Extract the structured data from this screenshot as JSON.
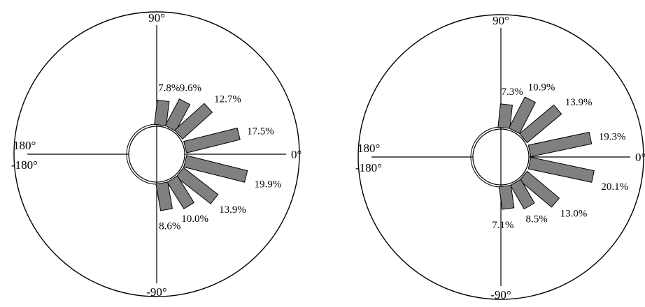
{
  "chart_data": [
    {
      "type": "polar-bar",
      "angle_labels": {
        "right": "0°",
        "top": "90°",
        "left_upper": "180°",
        "left_lower": "-180°",
        "bottom": "-90°"
      },
      "unit": "%",
      "angles_deg": [
        75,
        57,
        38,
        18,
        -10,
        -30,
        -48,
        -66,
        -84
      ],
      "values": [
        7.8,
        9.6,
        12.7,
        17.5,
        19.9,
        13.9,
        10.0,
        8.6
      ],
      "labels": [
        "7.8%",
        "9.6%",
        "12.7%",
        "17.5%",
        "19.9%",
        "13.9%",
        "10.0%",
        "8.6%"
      ]
    },
    {
      "type": "polar-bar",
      "angle_labels": {
        "right": "0°",
        "top": "90°",
        "left_upper": "180°",
        "left_lower": "-180°",
        "bottom": "-90°"
      },
      "unit": "%",
      "values": [
        7.3,
        10.9,
        13.9,
        19.3,
        20.1,
        13.0,
        8.5,
        7.1
      ],
      "labels": [
        "7.3%",
        "10.9%",
        "13.9%",
        "19.3%",
        "20.1%",
        "13.0%",
        "8.5%",
        "7.1%"
      ]
    }
  ]
}
